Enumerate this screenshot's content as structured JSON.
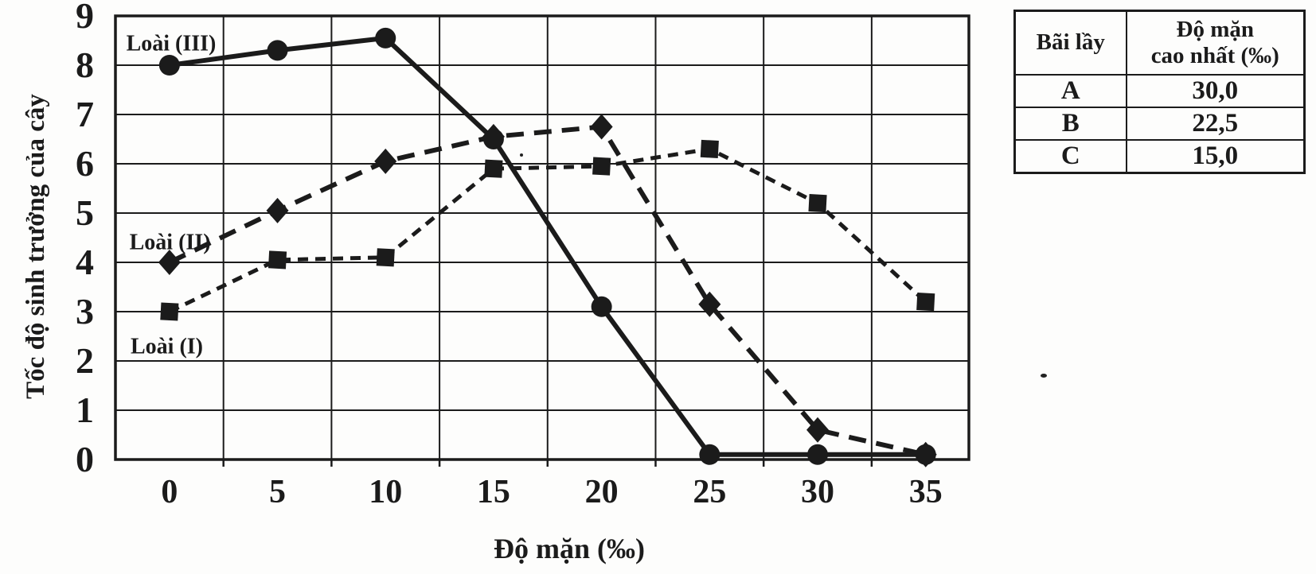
{
  "page": {
    "background": "#fdfdfc",
    "ink": "#1b1b1b"
  },
  "chart_data": {
    "type": "line",
    "title": "",
    "xlabel": "Độ mặn (‰)",
    "ylabel": "Tốc độ sinh trưởng của cây",
    "x": [
      0,
      5,
      10,
      15,
      20,
      25,
      30,
      35
    ],
    "x_ticks": [
      0,
      5,
      10,
      15,
      20,
      25,
      30,
      35
    ],
    "y_ticks": [
      0,
      1,
      2,
      3,
      4,
      5,
      6,
      7,
      8,
      9
    ],
    "xlim": [
      -2.5,
      37
    ],
    "ylim": [
      0,
      9
    ],
    "grid": true,
    "legend_position": "inline-annotations",
    "series": [
      {
        "name": "Loài (I)",
        "marker": "square",
        "line": "dashed-short",
        "values": [
          3.0,
          4.05,
          4.1,
          5.9,
          5.95,
          6.3,
          5.2,
          3.2
        ]
      },
      {
        "name": "Loài (II)",
        "marker": "diamond",
        "line": "dashed",
        "values": [
          4.0,
          5.05,
          6.05,
          6.55,
          6.75,
          3.15,
          0.6,
          0.1
        ]
      },
      {
        "name": "Loài (III)",
        "marker": "circle",
        "line": "solid",
        "values": [
          8.0,
          8.3,
          8.55,
          6.5,
          3.1,
          0.1,
          0.1,
          0.1
        ]
      }
    ],
    "annotations": [
      {
        "text": "Loài (III)",
        "x": -2.0,
        "y": 8.3
      },
      {
        "text": "Loài (II)",
        "x": -1.85,
        "y": 4.27
      },
      {
        "text": "Loài (I)",
        "x": -1.8,
        "y": 2.15
      }
    ]
  },
  "table": {
    "headers": [
      "Bãi lầy",
      "Độ mặn cao nhất (‰)"
    ],
    "header_col2_lines": [
      "Độ mặn",
      "cao nhất (‰)"
    ],
    "rows": [
      [
        "A",
        "30,0"
      ],
      [
        "B",
        "22,5"
      ],
      [
        "C",
        "15,0"
      ]
    ]
  }
}
